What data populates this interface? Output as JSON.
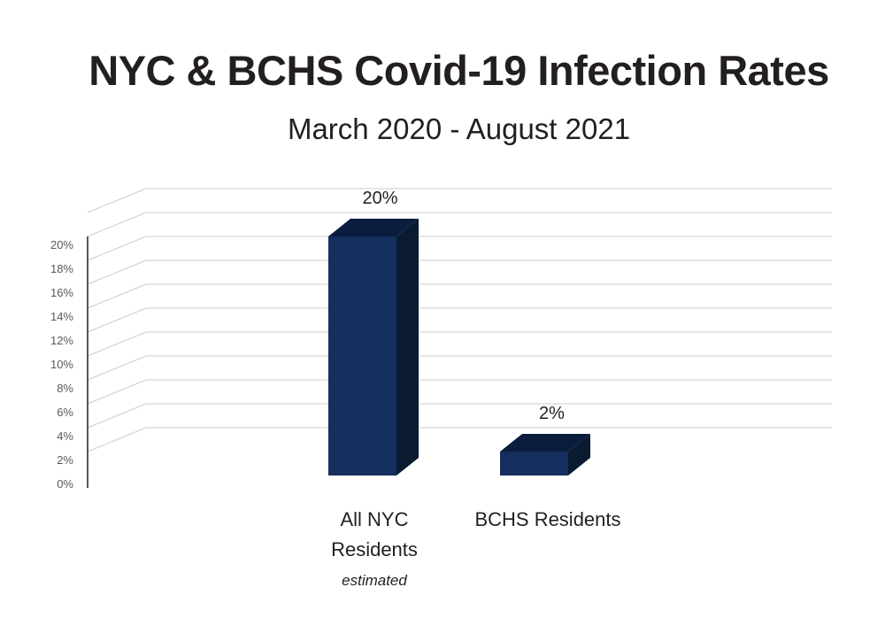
{
  "title": "NYC & BCHS Covid-19 Infection Rates",
  "subtitle": "March 2020 - August 2021",
  "colors": {
    "bar_front": "#142e5e",
    "bar_top": "#0b1d3e",
    "bar_side": "#0a1a30",
    "gridline": "#cccccc",
    "axis": "#231f20",
    "tick_text": "#595959"
  },
  "chart_data": {
    "type": "bar",
    "style": "3d",
    "categories": [
      "All NYC Residents",
      "BCHS Residents"
    ],
    "category_notes": [
      "estimated",
      ""
    ],
    "values": [
      20,
      2
    ],
    "data_labels": [
      "20%",
      "2%"
    ],
    "yticks": [
      "0%",
      "2%",
      "4%",
      "6%",
      "8%",
      "10%",
      "12%",
      "14%",
      "16%",
      "18%",
      "20%"
    ],
    "ylim": [
      0,
      20
    ],
    "grid": true,
    "legend": false
  }
}
